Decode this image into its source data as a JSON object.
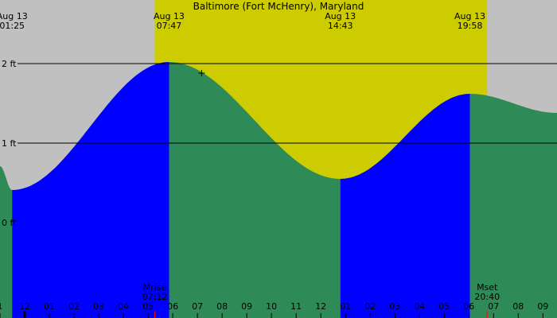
{
  "chart_data": {
    "type": "area",
    "title": "Baltimore (Fort McHenry), Maryland",
    "xlabel": "",
    "ylabel": "",
    "x_unit": "hour of day (Aug 13)",
    "xlim": [
      0.93,
      23.5
    ],
    "ylim": [
      -1.2,
      2.8
    ],
    "y_ticks": [
      {
        "value": 0,
        "label": "0 ft"
      },
      {
        "value": 1,
        "label": "1 ft"
      },
      {
        "value": 2,
        "label": "2 ft"
      }
    ],
    "gridlines_y": [
      1,
      2
    ],
    "series": [
      {
        "values_x": [
          0.93,
          1.42,
          7.78,
          14.72,
          19.97,
          23.5
        ],
        "values_y": [
          0.71,
          0.41,
          2.02,
          0.55,
          1.62,
          1.38
        ]
      }
    ],
    "extremes": [
      {
        "date": "Aug 13",
        "time": "01:25",
        "hour": 1.42,
        "height_ft": 0.41,
        "kind": "low"
      },
      {
        "date": "Aug 13",
        "time": "07:47",
        "hour": 7.78,
        "height_ft": 2.02,
        "kind": "high"
      },
      {
        "date": "Aug 13",
        "time": "14:43",
        "hour": 14.72,
        "height_ft": 0.55,
        "kind": "low"
      },
      {
        "date": "Aug 13",
        "time": "19:58",
        "hour": 19.97,
        "height_ft": 1.62,
        "kind": "high"
      }
    ],
    "rising_intervals": [
      [
        1.42,
        7.78
      ],
      [
        14.72,
        19.97
      ]
    ],
    "falling_intervals": [
      [
        0.93,
        1.42
      ],
      [
        7.78,
        14.72
      ],
      [
        19.97,
        23.5
      ]
    ],
    "daylight": {
      "start_hour": 7.2,
      "end_hour": 20.67
    },
    "moon_events": [
      {
        "label": "Mrise",
        "time": "07:12",
        "hour": 7.2
      },
      {
        "label": "Mset",
        "time": "20:40",
        "hour": 20.67
      }
    ],
    "current_marker": {
      "hour": 9.1,
      "height_ft": 1.88
    },
    "hour_ticks": [
      {
        "hour": 0.93,
        "label": "1"
      },
      {
        "hour": 1.93,
        "label": "12"
      },
      {
        "hour": 2.93,
        "label": "01"
      },
      {
        "hour": 3.93,
        "label": "02"
      },
      {
        "hour": 4.93,
        "label": "03"
      },
      {
        "hour": 5.93,
        "label": "04"
      },
      {
        "hour": 6.93,
        "label": "05"
      },
      {
        "hour": 7.93,
        "label": "06"
      },
      {
        "hour": 8.93,
        "label": "07"
      },
      {
        "hour": 9.93,
        "label": "08"
      },
      {
        "hour": 10.93,
        "label": "09"
      },
      {
        "hour": 11.93,
        "label": "10"
      },
      {
        "hour": 12.93,
        "label": "11"
      },
      {
        "hour": 13.93,
        "label": "12"
      },
      {
        "hour": 14.93,
        "label": "01"
      },
      {
        "hour": 15.93,
        "label": "02"
      },
      {
        "hour": 16.93,
        "label": "03"
      },
      {
        "hour": 17.93,
        "label": "04"
      },
      {
        "hour": 18.93,
        "label": "05"
      },
      {
        "hour": 19.93,
        "label": "06"
      },
      {
        "hour": 20.93,
        "label": "07"
      },
      {
        "hour": 21.93,
        "label": "08"
      },
      {
        "hour": 22.93,
        "label": "09"
      }
    ],
    "colors": {
      "night": "#c0c0c0",
      "day": "#cccc00",
      "rising": "#0000ff",
      "falling": "#2e8b57",
      "grid": "#000000",
      "moon_tick": "#ff0000",
      "midnight_tick": "#000000"
    }
  }
}
